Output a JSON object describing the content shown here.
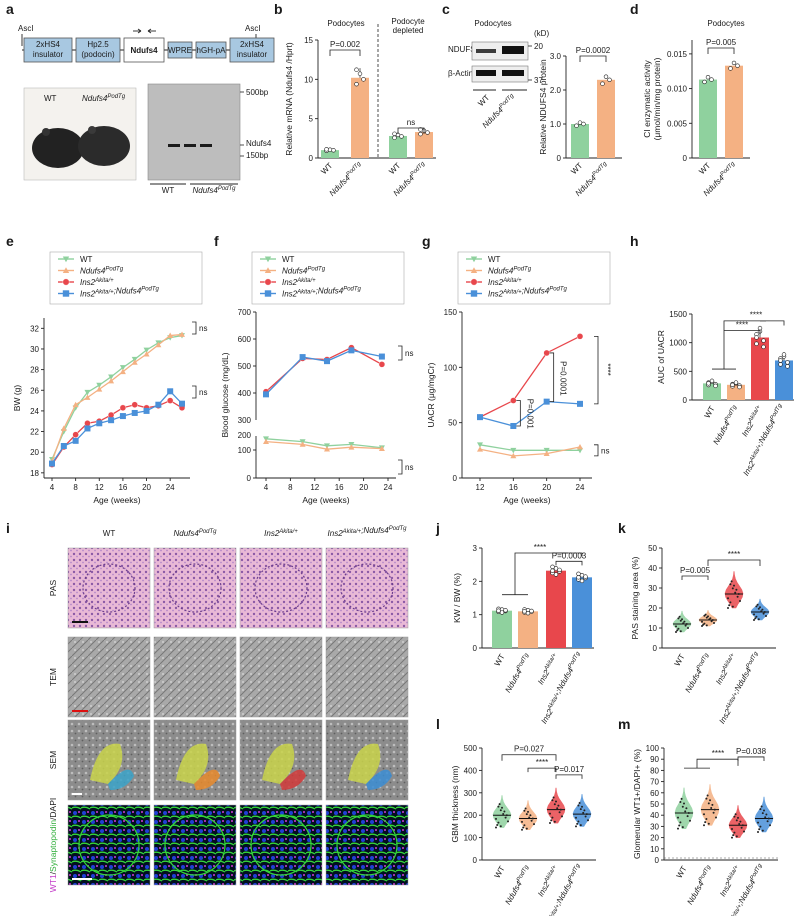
{
  "panel_labels": {
    "a": "a",
    "b": "b",
    "c": "c",
    "d": "d",
    "e": "e",
    "f": "f",
    "g": "g",
    "h": "h",
    "i": "i",
    "j": "j",
    "k": "k",
    "l": "l",
    "m": "m"
  },
  "construct": {
    "left_site": "AscI",
    "right_site": "AscI",
    "boxes": [
      "2xHS4 insulator",
      "Hp2.5 (podocin)",
      "Ndufs4",
      "WPRE",
      "hGH-pA",
      "2xHS4 insulator"
    ]
  },
  "gel": {
    "bands": [
      "500bp",
      "Ndufs4",
      "150bp"
    ],
    "lanes": [
      "WT",
      "Ndufs4PodTg"
    ],
    "photo_labels": [
      "WT",
      "Ndufs4PodTg"
    ]
  },
  "colors": {
    "wt": "#8fd19e",
    "tg": "#f4b183",
    "ins": "#e8474c",
    "combo": "#4a90d9"
  },
  "legend": [
    "WT",
    "Ndufs4PodTg",
    "Ins2Akita/+",
    "Ins2Akita/+;Ndufs4PodTg"
  ],
  "b": {
    "ylabel": "Relative mRNA (Ndufs4 /Hprt)",
    "headers": [
      "Podocytes",
      "Podocyte depleted"
    ],
    "p": "P=0.002",
    "ns": "ns",
    "categories": [
      "WT",
      "Ndufs4PodTg",
      "WT",
      "Ndufs4PodTg"
    ],
    "ticks": [
      "0",
      "5",
      "10",
      "15"
    ]
  },
  "c": {
    "header": "Podocytes",
    "kd": "(kD)",
    "blots": [
      "NDUFS4",
      "β-Actin"
    ],
    "markers": [
      "20",
      "37"
    ],
    "lanes": [
      "WT",
      "Ndufs4PodTg"
    ],
    "ylabel": "Relative NDUFS4 protein",
    "p": "P=0.0002",
    "ticks": [
      "0",
      "1.0",
      "2.0",
      "3.0"
    ]
  },
  "d": {
    "header": "Podocytes",
    "ylabel": "CI enzymatic activity (μmol/min/mg protein)",
    "p": "P=0.005",
    "ticks": [
      "0",
      "0.005",
      "0.010",
      "0.015"
    ]
  },
  "e": {
    "ylabel": "BW (g)",
    "xlabel": "Age (weeks)",
    "ns": "ns"
  },
  "f": {
    "ylabel": "Blood glucose (mg/dL)",
    "xlabel": "Age (weeks)",
    "ns": "ns"
  },
  "g": {
    "ylabel": "UACR (μg/mgCr)",
    "xlabel": "Age (weeks)",
    "ns": "ns",
    "p1": "P=0.001",
    "p2": "P=0.0001",
    "stars": "****"
  },
  "h": {
    "ylabel": "AUC of UACR",
    "stars": "****",
    "ticks": [
      "0",
      "500",
      "1000",
      "1500"
    ]
  },
  "i": {
    "columns": [
      "WT",
      "Ndufs4PodTg",
      "Ins2Akita/+",
      "Ins2Akita/+;Ndufs4PodTg"
    ],
    "rows": [
      "PAS",
      "TEM",
      "SEM",
      "WT1/Synaptopodin/DAPI"
    ]
  },
  "j": {
    "ylabel": "KW / BW (%)",
    "stars": "****",
    "p": "P=0.0003",
    "ticks": [
      "0",
      "1",
      "2",
      "3"
    ]
  },
  "k": {
    "ylabel": "PAS staining area (%)",
    "p": "P=0.005",
    "stars": "****",
    "ticks": [
      "0",
      "10",
      "20",
      "30",
      "40",
      "50"
    ]
  },
  "l": {
    "ylabel": "GBM thickness (nm)",
    "p1": "P=0.027",
    "stars": "****",
    "p2": "P=0.017",
    "ticks": [
      "0",
      "100",
      "200",
      "300",
      "400",
      "500"
    ]
  },
  "m": {
    "ylabel": "Glomerular WT1+/DAPI+ (%)",
    "stars": "****",
    "p": "P=0.038",
    "ticks": [
      "0",
      "10",
      "20",
      "30",
      "40",
      "50",
      "60",
      "70",
      "80",
      "90",
      "100"
    ]
  },
  "chart_data": [
    {
      "panel": "b",
      "type": "bar",
      "categories": [
        "WT",
        "Ndufs4PodTg",
        "WT",
        "Ndufs4PodTg"
      ],
      "values": [
        1.0,
        10.2,
        2.8,
        3.3
      ],
      "ylim": [
        0,
        15
      ]
    },
    {
      "panel": "c",
      "type": "bar",
      "categories": [
        "WT",
        "Ndufs4PodTg"
      ],
      "values": [
        1.0,
        2.3
      ],
      "ylim": [
        0,
        3
      ]
    },
    {
      "panel": "d",
      "type": "bar",
      "categories": [
        "WT",
        "Ndufs4PodTg"
      ],
      "values": [
        0.0113,
        0.0133
      ],
      "ylim": [
        0,
        0.017
      ]
    },
    {
      "panel": "e",
      "type": "line",
      "x": [
        4,
        6,
        8,
        10,
        12,
        14,
        16,
        18,
        20,
        22,
        24,
        26
      ],
      "xticks": [
        4,
        8,
        12,
        16,
        20,
        24
      ],
      "yticks": [
        18,
        20,
        22,
        24,
        26,
        28,
        30,
        32
      ],
      "ylim": [
        17.5,
        33
      ],
      "series": [
        {
          "name": "WT",
          "values": [
            19.3,
            22.0,
            24.3,
            25.8,
            26.5,
            27.3,
            28.2,
            29.0,
            29.9,
            30.6,
            31.1,
            31.3
          ]
        },
        {
          "name": "Ndufs4PodTg",
          "values": [
            19.1,
            22.3,
            24.6,
            25.3,
            26.1,
            26.9,
            27.8,
            28.7,
            29.5,
            30.4,
            31.3,
            31.4
          ]
        },
        {
          "name": "Ins2Akita/+",
          "values": [
            18.8,
            20.5,
            21.7,
            22.8,
            23.0,
            23.6,
            24.3,
            24.6,
            24.3,
            24.5,
            25.0,
            24.3
          ]
        },
        {
          "name": "Ins2Akita/+;Ndufs4PodTg",
          "values": [
            18.9,
            20.6,
            21.1,
            22.3,
            22.8,
            23.1,
            23.5,
            23.8,
            24.0,
            24.6,
            25.9,
            24.7
          ]
        }
      ]
    },
    {
      "panel": "f",
      "type": "line",
      "yticks": [
        0,
        100,
        200,
        300,
        400,
        500,
        600,
        700
      ],
      "series": [
        {
          "name": "WT",
          "x": [
            4,
            10,
            14,
            18,
            23
          ],
          "values": [
            140,
            130,
            115,
            120,
            108
          ]
        },
        {
          "name": "Ndufs4PodTg",
          "x": [
            4,
            10,
            14,
            18,
            23
          ],
          "values": [
            130,
            120,
            103,
            110,
            105
          ]
        },
        {
          "name": "Ins2Akita/+",
          "x": [
            4,
            10,
            14,
            18,
            23
          ],
          "values": [
            405,
            528,
            524,
            568,
            506
          ]
        },
        {
          "name": "Ins2Akita/+;Ndufs4PodTg",
          "x": [
            4,
            10,
            14,
            18,
            23
          ],
          "values": [
            395,
            533,
            518,
            558,
            535
          ]
        }
      ],
      "xticks": [
        4,
        8,
        12,
        16,
        20,
        24
      ],
      "ylim": [
        0,
        700
      ]
    },
    {
      "panel": "g",
      "type": "line",
      "x": [
        12,
        16,
        20,
        24
      ],
      "yticks": [
        0,
        50,
        100,
        150
      ],
      "ylim": [
        0,
        150
      ],
      "series": [
        {
          "name": "WT",
          "values": [
            30,
            25,
            25,
            25
          ]
        },
        {
          "name": "Ndufs4PodTg",
          "values": [
            26,
            20,
            22,
            28
          ]
        },
        {
          "name": "Ins2Akita/+",
          "values": [
            55,
            70,
            113,
            128
          ]
        },
        {
          "name": "Ins2Akita/+;Ndufs4PodTg",
          "values": [
            55,
            47,
            69,
            67
          ]
        }
      ]
    },
    {
      "panel": "h",
      "type": "bar",
      "categories": [
        "WT",
        "Ndufs4PodTg",
        "Ins2Akita/+",
        "Ins2Akita/+;Ndufs4PodTg"
      ],
      "values": [
        290,
        265,
        1090,
        690
      ],
      "ylim": [
        0,
        1500
      ]
    },
    {
      "panel": "j",
      "type": "bar",
      "categories": [
        "WT",
        "Ndufs4PodTg",
        "Ins2Akita/+",
        "Ins2Akita/+;Ndufs4PodTg"
      ],
      "values": [
        1.12,
        1.1,
        2.32,
        2.12
      ],
      "ylim": [
        0,
        3
      ]
    },
    {
      "panel": "k",
      "type": "violin",
      "categories": [
        "WT",
        "Ndufs4PodTg",
        "Ins2Akita/+",
        "Ins2Akita/+;Ndufs4PodTg"
      ],
      "medians": [
        12,
        14,
        27,
        18
      ],
      "ylim": [
        0,
        50
      ]
    },
    {
      "panel": "l",
      "type": "violin",
      "categories": [
        "WT",
        "Ndufs4PodTg",
        "Ins2Akita/+",
        "Ins2Akita/+;Ndufs4PodTg"
      ],
      "medians": [
        200,
        185,
        225,
        205
      ],
      "ylim": [
        0,
        500
      ]
    },
    {
      "panel": "m",
      "type": "violin",
      "categories": [
        "WT",
        "Ndufs4PodTg",
        "Ins2Akita/+",
        "Ins2Akita/+;Ndufs4PodTg"
      ],
      "medians": [
        42,
        45,
        31,
        37
      ],
      "ylim": [
        0,
        100
      ]
    }
  ]
}
